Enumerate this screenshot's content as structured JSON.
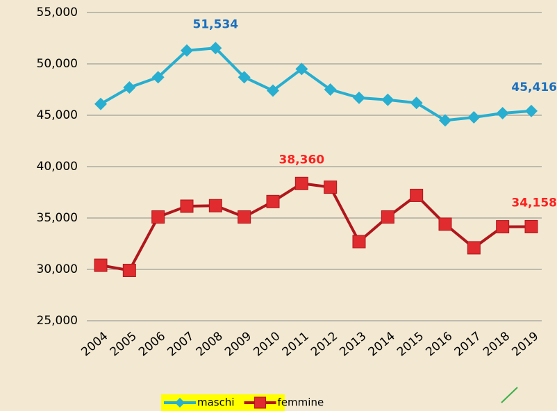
{
  "chart_data": {
    "type": "line",
    "categories": [
      "2004",
      "2005",
      "2006",
      "2007",
      "2008",
      "2009",
      "2010",
      "2011",
      "2012",
      "2013",
      "2014",
      "2015",
      "2016",
      "2017",
      "2018",
      "2019"
    ],
    "series": [
      {
        "name": "maschi",
        "color": "#27aed0",
        "label_color": "#1a6fc0",
        "values": [
          46100,
          47700,
          48700,
          51300,
          51534,
          48700,
          47400,
          49500,
          47500,
          46700,
          46500,
          46200,
          44500,
          44800,
          45200,
          45416
        ],
        "value_labels": [
          null,
          null,
          null,
          null,
          "51,534",
          null,
          null,
          null,
          null,
          null,
          null,
          null,
          null,
          null,
          null,
          "45,416"
        ]
      },
      {
        "name": "femmine",
        "color": "#b0161c",
        "marker_color": "#e02b2f",
        "label_color": "#ff1f1f",
        "values": [
          30400,
          29900,
          35100,
          36150,
          36200,
          35100,
          36600,
          38360,
          38000,
          32700,
          35100,
          37200,
          34400,
          32100,
          34150,
          34158
        ],
        "value_labels": [
          null,
          null,
          null,
          null,
          null,
          null,
          null,
          "38,360",
          null,
          null,
          null,
          null,
          null,
          null,
          null,
          "34,158"
        ]
      }
    ],
    "ylim": [
      25000,
      55000
    ],
    "yticks": [
      {
        "value": 25000,
        "label": "25,000"
      },
      {
        "value": 30000,
        "label": "30,000"
      },
      {
        "value": 35000,
        "label": "35,000"
      },
      {
        "value": 40000,
        "label": "40,000"
      },
      {
        "value": 45000,
        "label": "45,000"
      },
      {
        "value": 50000,
        "label": "50,000"
      },
      {
        "value": 55000,
        "label": "55,000"
      }
    ],
    "grid": true,
    "legend": "bottom",
    "legend_background": "#ffff00"
  }
}
